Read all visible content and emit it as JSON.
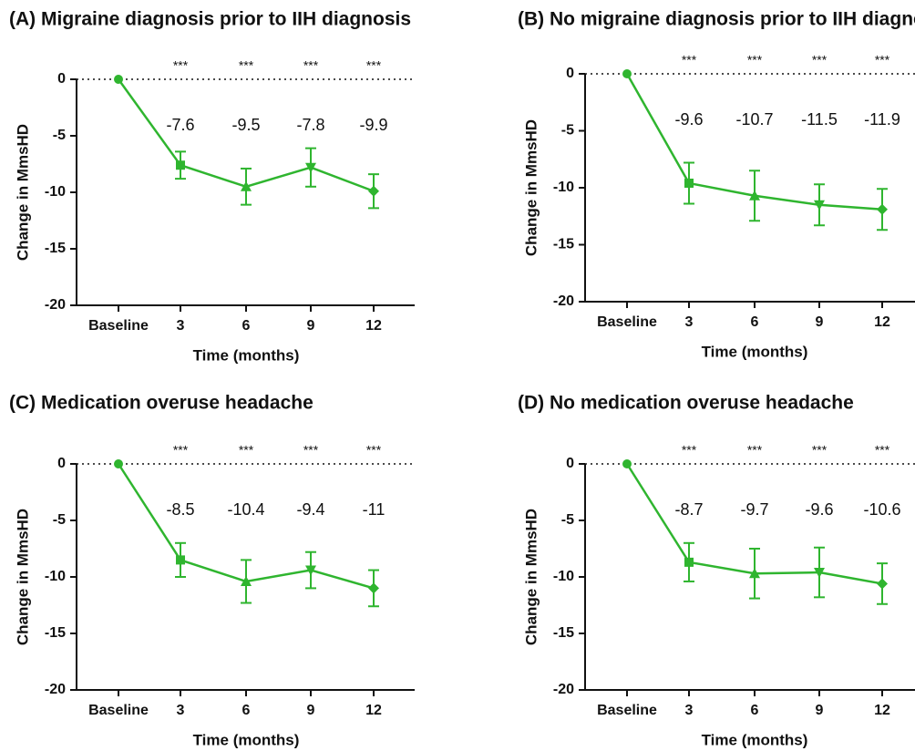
{
  "chart_data": [
    {
      "type": "line",
      "title": "(A) Migraine diagnosis prior to IIH diagnosis",
      "xlabel": "Time (months)",
      "ylabel": "Change in MmsHD",
      "categories": [
        "Baseline",
        "3",
        "6",
        "9",
        "12"
      ],
      "values": [
        0,
        -7.6,
        -9.5,
        -7.8,
        -9.9
      ],
      "errors": [
        null,
        1.2,
        1.6,
        1.7,
        1.5
      ],
      "value_labels": [
        null,
        "-7.6",
        "-9.5",
        "-7.8",
        "-9.9"
      ],
      "annotations": [
        null,
        "***",
        "***",
        "***",
        "***"
      ],
      "color": "#2fb52f",
      "ylim": [
        -20,
        0
      ],
      "yticks": [
        0,
        -5,
        -10,
        -15,
        -20
      ]
    },
    {
      "type": "line",
      "title": "(B) No migraine diagnosis prior to IIH diagnosis",
      "xlabel": "Time (months)",
      "ylabel": "Change in MmsHD",
      "categories": [
        "Baseline",
        "3",
        "6",
        "9",
        "12"
      ],
      "values": [
        0,
        -9.6,
        -10.7,
        -11.5,
        -11.9
      ],
      "errors": [
        null,
        1.8,
        2.2,
        1.8,
        1.8
      ],
      "value_labels": [
        null,
        "-9.6",
        "-10.7",
        "-11.5",
        "-11.9"
      ],
      "annotations": [
        null,
        "***",
        "***",
        "***",
        "***"
      ],
      "color": "#2fb52f",
      "ylim": [
        -20,
        0
      ],
      "yticks": [
        0,
        -5,
        -10,
        -15,
        -20
      ]
    },
    {
      "type": "line",
      "title": "(C) Medication overuse headache",
      "xlabel": "Time (months)",
      "ylabel": "Change in MmsHD",
      "categories": [
        "Baseline",
        "3",
        "6",
        "9",
        "12"
      ],
      "values": [
        0,
        -8.5,
        -10.4,
        -9.4,
        -11
      ],
      "errors": [
        null,
        1.5,
        1.9,
        1.6,
        1.6
      ],
      "value_labels": [
        null,
        "-8.5",
        "-10.4",
        "-9.4",
        "-11"
      ],
      "annotations": [
        null,
        "***",
        "***",
        "***",
        "***"
      ],
      "color": "#2fb52f",
      "ylim": [
        -20,
        0
      ],
      "yticks": [
        0,
        -5,
        -10,
        -15,
        -20
      ]
    },
    {
      "type": "line",
      "title": "(D) No medication overuse headache",
      "xlabel": "Time (months)",
      "ylabel": "Change in MmsHD",
      "categories": [
        "Baseline",
        "3",
        "6",
        "9",
        "12"
      ],
      "values": [
        0,
        -8.7,
        -9.7,
        -9.6,
        -10.6
      ],
      "errors": [
        null,
        1.7,
        2.2,
        2.2,
        1.8
      ],
      "value_labels": [
        null,
        "-8.7",
        "-9.7",
        "-9.6",
        "-10.6"
      ],
      "annotations": [
        null,
        "***",
        "***",
        "***",
        "***"
      ],
      "color": "#2fb52f",
      "ylim": [
        -20,
        0
      ],
      "yticks": [
        0,
        -5,
        -10,
        -15,
        -20
      ]
    }
  ]
}
